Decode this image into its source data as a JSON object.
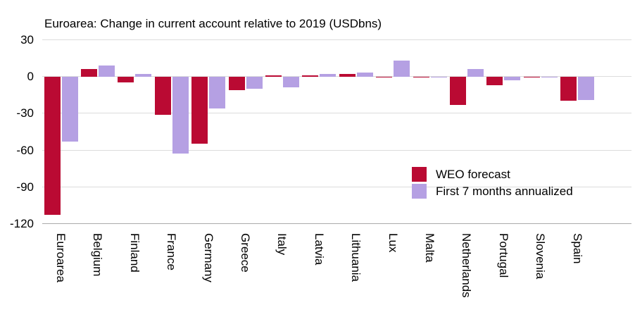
{
  "chart_data": {
    "type": "bar",
    "title": "Euroarea: Change in current account relative to 2019 (USDbns)",
    "categories": [
      "Euroarea",
      "Belgium",
      "Finland",
      "France",
      "Germany",
      "Greece",
      "Italy",
      "Latvia",
      "Lithuania",
      "Lux",
      "Malta",
      "Netherlands",
      "Portugal",
      "Slovenia",
      "Spain"
    ],
    "series": [
      {
        "name": "WEO forecast",
        "color": "#ba0a33",
        "values": [
          -113,
          6,
          -5,
          -31,
          -55,
          -11,
          1,
          1,
          2,
          -1,
          -1,
          -23,
          -7,
          -1,
          -20
        ]
      },
      {
        "name": "First 7 months annualized",
        "color": "#b5a0e3",
        "values": [
          -53,
          9,
          2,
          -63,
          -26,
          -10,
          -9,
          2,
          3,
          13,
          -1,
          6,
          -3,
          -0.5,
          -19
        ]
      }
    ],
    "xlabel": "",
    "ylabel": "",
    "yticks": [
      30,
      0,
      -30,
      -60,
      -90,
      -120
    ],
    "ylim": [
      -120,
      30
    ],
    "grid": "horizontal",
    "legend_position": "inside-right",
    "x_tick_rotation_deg": 90
  },
  "colors": {
    "gridline": "#dcdcdc",
    "bottom_axis": "#ababab",
    "background": "#ffffff",
    "text": "#000000"
  }
}
